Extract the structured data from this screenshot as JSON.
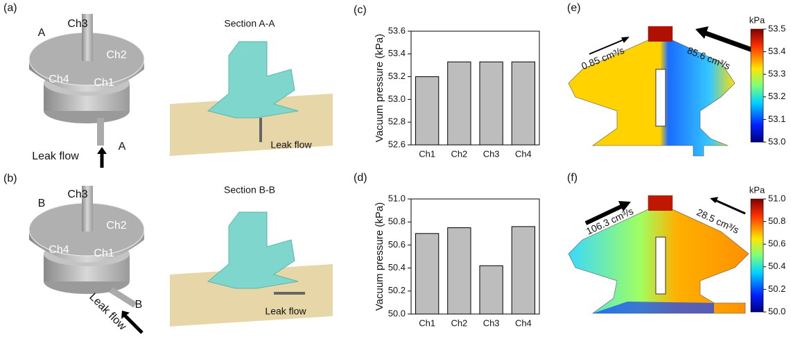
{
  "chart_data": [
    {
      "type": "bar",
      "panel_label": "(c)",
      "y_label": "Vacuum pressure (kPa)",
      "categories": [
        "Ch1",
        "Ch2",
        "Ch3",
        "Ch4"
      ],
      "values": [
        53.2,
        53.33,
        53.33,
        53.33
      ],
      "color": "#bdbdbd",
      "ylim": [
        52.6,
        53.6
      ],
      "yticks": [
        52.6,
        52.8,
        {
          "value": 53,
          "label": "53.0"
        },
        53.2,
        53.4,
        53.6
      ]
    },
    {
      "type": "bar",
      "panel_label": "(d)",
      "y_label": "Vacuum pressure (kPa)",
      "categories": [
        "Ch1",
        "Ch2",
        "Ch3",
        "Ch4"
      ],
      "values": [
        50.7,
        50.75,
        50.42,
        50.76
      ],
      "color": "#bdbdbd",
      "ylim": [
        50,
        51
      ],
      "yticks": [
        {
          "value": 50,
          "label": "50.0"
        },
        50.2,
        50.4,
        50.6,
        50.8,
        {
          "value": 51,
          "label": "51.0"
        }
      ]
    }
  ],
  "illustrations": [
    {
      "label": "(a)",
      "texts": [
        "Ch3",
        "A",
        "Ch2",
        "Ch4",
        "Ch1",
        "A",
        "Leak flow"
      ]
    },
    {
      "label": "(b)",
      "texts": [
        "Ch3",
        "B",
        "Ch2",
        "Ch4",
        "Ch1",
        "B",
        "Leak flow"
      ]
    }
  ],
  "sections": [
    {
      "title": "Section A-A",
      "texts": [
        "Leak flow"
      ]
    },
    {
      "title": "Section B-B",
      "texts": [
        "Leak flow"
      ]
    }
  ],
  "flow_maps": [
    {
      "label": "(e)",
      "flow_rates": [
        "0.85 cm³/s",
        "85.6 cm³/s"
      ],
      "colorbar": {
        "unit": "kPa",
        "lim": [
          53,
          53.5
        ],
        "ticks": [
          {
            "value": 53,
            "label": "53.0"
          },
          53.1,
          53.2,
          53.3,
          53.4,
          53.5
        ]
      }
    },
    {
      "label": "(f)",
      "flow_rates": [
        "106.3 cm³/s",
        "28.5 cm³/s"
      ],
      "colorbar": {
        "unit": "kPa",
        "lim": [
          50,
          51
        ],
        "ticks": [
          {
            "value": 50,
            "label": "50.0"
          },
          50.2,
          50.4,
          50.6,
          50.8,
          {
            "value": 51,
            "label": "51.0"
          }
        ]
      }
    }
  ]
}
